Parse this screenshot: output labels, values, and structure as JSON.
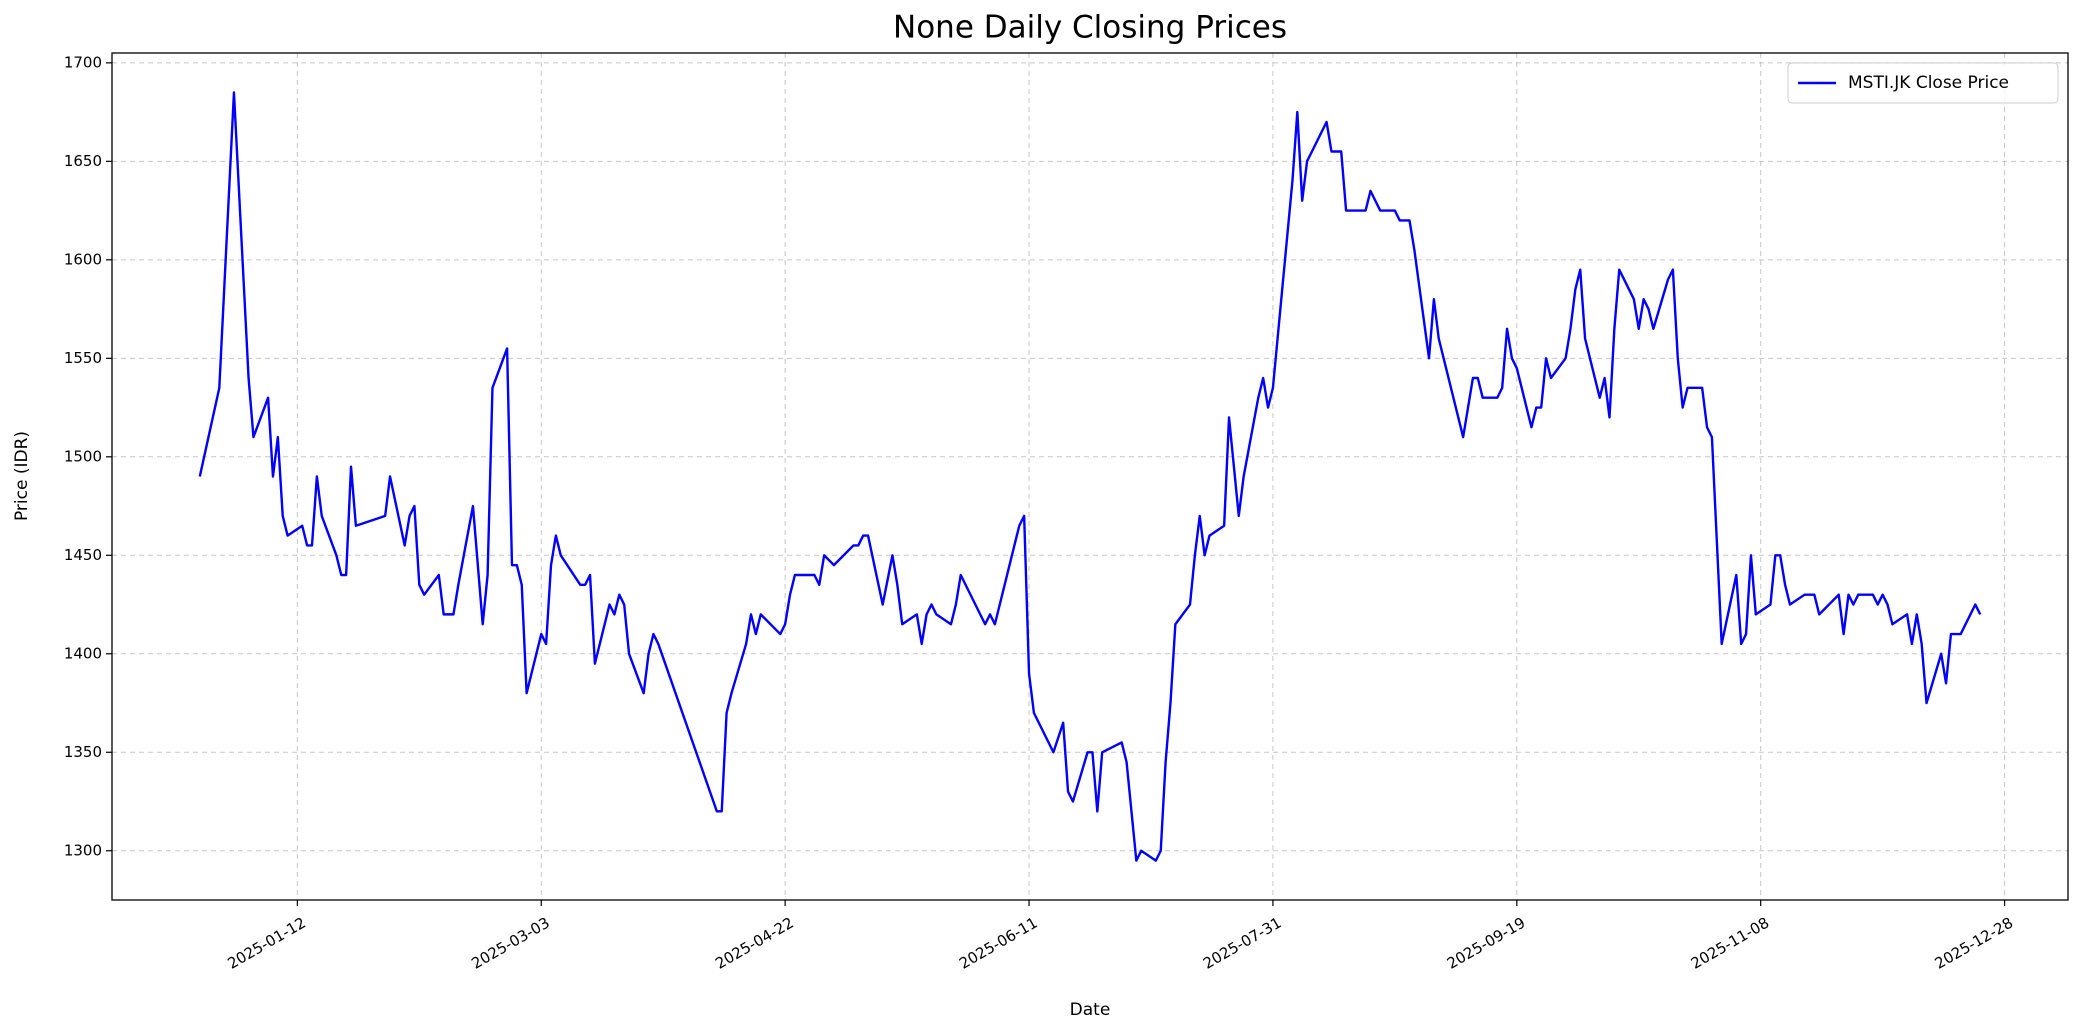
{
  "chart_data": {
    "type": "line",
    "title": "None Daily Closing Prices",
    "x_label": "Date",
    "y_label": "Price (IDR)",
    "x": [
      "2024-12-23",
      "2024-12-27",
      "2024-12-30",
      "2025-01-02",
      "2025-01-03",
      "2025-01-06",
      "2025-01-07",
      "2025-01-08",
      "2025-01-09",
      "2025-01-10",
      "2025-01-13",
      "2025-01-14",
      "2025-01-15",
      "2025-01-16",
      "2025-01-17",
      "2025-01-20",
      "2025-01-21",
      "2025-01-22",
      "2025-01-23",
      "2025-01-24",
      "2025-01-30",
      "2025-01-31",
      "2025-02-03",
      "2025-02-04",
      "2025-02-05",
      "2025-02-06",
      "2025-02-07",
      "2025-02-10",
      "2025-02-11",
      "2025-02-13",
      "2025-02-14",
      "2025-02-17",
      "2025-02-19",
      "2025-02-20",
      "2025-02-21",
      "2025-02-24",
      "2025-02-25",
      "2025-02-26",
      "2025-02-27",
      "2025-02-28",
      "2025-03-03",
      "2025-03-04",
      "2025-03-05",
      "2025-03-06",
      "2025-03-07",
      "2025-03-11",
      "2025-03-12",
      "2025-03-13",
      "2025-03-14",
      "2025-03-17",
      "2025-03-18",
      "2025-03-19",
      "2025-03-20",
      "2025-03-21",
      "2025-03-24",
      "2025-03-25",
      "2025-03-26",
      "2025-03-27",
      "2025-04-08",
      "2025-04-09",
      "2025-04-10",
      "2025-04-11",
      "2025-04-14",
      "2025-04-15",
      "2025-04-16",
      "2025-04-17",
      "2025-04-21",
      "2025-04-22",
      "2025-04-23",
      "2025-04-24",
      "2025-04-28",
      "2025-04-29",
      "2025-04-30",
      "2025-05-02",
      "2025-05-06",
      "2025-05-07",
      "2025-05-08",
      "2025-05-09",
      "2025-05-12",
      "2025-05-14",
      "2025-05-15",
      "2025-05-16",
      "2025-05-19",
      "2025-05-20",
      "2025-05-21",
      "2025-05-22",
      "2025-05-23",
      "2025-05-26",
      "2025-05-27",
      "2025-05-28",
      "2025-06-02",
      "2025-06-03",
      "2025-06-04",
      "2025-06-05",
      "2025-06-09",
      "2025-06-10",
      "2025-06-11",
      "2025-06-12",
      "2025-06-16",
      "2025-06-18",
      "2025-06-19",
      "2025-06-20",
      "2025-06-23",
      "2025-06-24",
      "2025-06-25",
      "2025-06-26",
      "2025-06-30",
      "2025-07-01",
      "2025-07-03",
      "2025-07-04",
      "2025-07-07",
      "2025-07-08",
      "2025-07-09",
      "2025-07-10",
      "2025-07-11",
      "2025-07-14",
      "2025-07-15",
      "2025-07-16",
      "2025-07-17",
      "2025-07-18",
      "2025-07-21",
      "2025-07-22",
      "2025-07-24",
      "2025-07-25",
      "2025-07-28",
      "2025-07-29",
      "2025-07-30",
      "2025-07-31",
      "2025-08-04",
      "2025-08-05",
      "2025-08-06",
      "2025-08-07",
      "2025-08-08",
      "2025-08-11",
      "2025-08-12",
      "2025-08-14",
      "2025-08-15",
      "2025-08-19",
      "2025-08-20",
      "2025-08-21",
      "2025-08-22",
      "2025-08-25",
      "2025-08-26",
      "2025-08-28",
      "2025-08-29",
      "2025-09-01",
      "2025-09-02",
      "2025-09-03",
      "2025-09-08",
      "2025-09-09",
      "2025-09-10",
      "2025-09-11",
      "2025-09-12",
      "2025-09-15",
      "2025-09-16",
      "2025-09-17",
      "2025-09-18",
      "2025-09-19",
      "2025-09-22",
      "2025-09-23",
      "2025-09-24",
      "2025-09-25",
      "2025-09-26",
      "2025-09-29",
      "2025-09-30",
      "2025-10-01",
      "2025-10-02",
      "2025-10-03",
      "2025-10-06",
      "2025-10-07",
      "2025-10-08",
      "2025-10-09",
      "2025-10-10",
      "2025-10-13",
      "2025-10-14",
      "2025-10-15",
      "2025-10-16",
      "2025-10-17",
      "2025-10-20",
      "2025-10-21",
      "2025-10-22",
      "2025-10-23",
      "2025-10-24",
      "2025-10-27",
      "2025-10-28",
      "2025-10-29",
      "2025-10-31",
      "2025-11-03",
      "2025-11-04",
      "2025-11-05",
      "2025-11-06",
      "2025-11-07",
      "2025-11-10",
      "2025-11-11",
      "2025-11-12",
      "2025-11-13",
      "2025-11-14",
      "2025-11-17",
      "2025-11-19",
      "2025-11-20",
      "2025-11-24",
      "2025-11-25",
      "2025-11-26",
      "2025-11-27",
      "2025-11-28",
      "2025-12-01",
      "2025-12-02",
      "2025-12-03",
      "2025-12-04",
      "2025-12-05",
      "2025-12-08",
      "2025-12-09",
      "2025-12-10",
      "2025-12-11",
      "2025-12-12",
      "2025-12-15",
      "2025-12-16",
      "2025-12-17",
      "2025-12-19",
      "2025-12-22",
      "2025-12-23"
    ],
    "series": [
      {
        "name": "MSTI.JK Close Price",
        "color": "#0000ff",
        "values": [
          1490,
          1535,
          1685,
          1540,
          1510,
          1530,
          1490,
          1510,
          1470,
          1460,
          1465,
          1455,
          1455,
          1490,
          1470,
          1450,
          1440,
          1440,
          1495,
          1465,
          1470,
          1490,
          1455,
          1470,
          1475,
          1435,
          1430,
          1440,
          1420,
          1420,
          1435,
          1475,
          1415,
          1440,
          1535,
          1555,
          1445,
          1445,
          1435,
          1380,
          1410,
          1405,
          1445,
          1460,
          1450,
          1435,
          1435,
          1440,
          1395,
          1425,
          1420,
          1430,
          1425,
          1400,
          1380,
          1400,
          1410,
          1405,
          1320,
          1320,
          1370,
          1380,
          1405,
          1420,
          1410,
          1420,
          1410,
          1415,
          1430,
          1440,
          1440,
          1435,
          1450,
          1445,
          1455,
          1455,
          1460,
          1460,
          1425,
          1450,
          1435,
          1415,
          1420,
          1405,
          1420,
          1425,
          1420,
          1415,
          1425,
          1440,
          1415,
          1420,
          1415,
          1425,
          1465,
          1470,
          1390,
          1370,
          1350,
          1365,
          1330,
          1325,
          1350,
          1350,
          1320,
          1350,
          1355,
          1345,
          1295,
          1300,
          1295,
          1300,
          1345,
          1375,
          1415,
          1425,
          1450,
          1470,
          1450,
          1460,
          1465,
          1520,
          1470,
          1490,
          1530,
          1540,
          1525,
          1535,
          1640,
          1675,
          1630,
          1650,
          1655,
          1670,
          1655,
          1655,
          1625,
          1625,
          1635,
          1630,
          1625,
          1625,
          1620,
          1620,
          1605,
          1550,
          1580,
          1560,
          1510,
          1525,
          1540,
          1540,
          1530,
          1530,
          1535,
          1565,
          1550,
          1545,
          1515,
          1525,
          1525,
          1550,
          1540,
          1550,
          1565,
          1585,
          1595,
          1560,
          1530,
          1540,
          1520,
          1565,
          1595,
          1580,
          1565,
          1580,
          1575,
          1565,
          1590,
          1595,
          1550,
          1525,
          1535,
          1535,
          1515,
          1510,
          1405,
          1440,
          1405,
          1410,
          1450,
          1420,
          1425,
          1450,
          1450,
          1435,
          1425,
          1430,
          1430,
          1420,
          1430,
          1410,
          1430,
          1425,
          1430,
          1430,
          1425,
          1430,
          1425,
          1415,
          1420,
          1405,
          1420,
          1405,
          1375,
          1400,
          1385,
          1410,
          1410,
          1425,
          1420
        ]
      }
    ],
    "xlim": [
      "2024-12-05",
      "2026-01-10"
    ],
    "xticks": [
      "2025-01-12",
      "2025-03-03",
      "2025-04-22",
      "2025-06-11",
      "2025-07-31",
      "2025-09-19",
      "2025-11-08",
      "2025-12-28"
    ],
    "ylim": [
      1275,
      1705
    ],
    "yticks": [
      1300,
      1350,
      1400,
      1450,
      1500,
      1550,
      1600,
      1650,
      1700
    ],
    "grid": true,
    "legend": "upper right"
  }
}
